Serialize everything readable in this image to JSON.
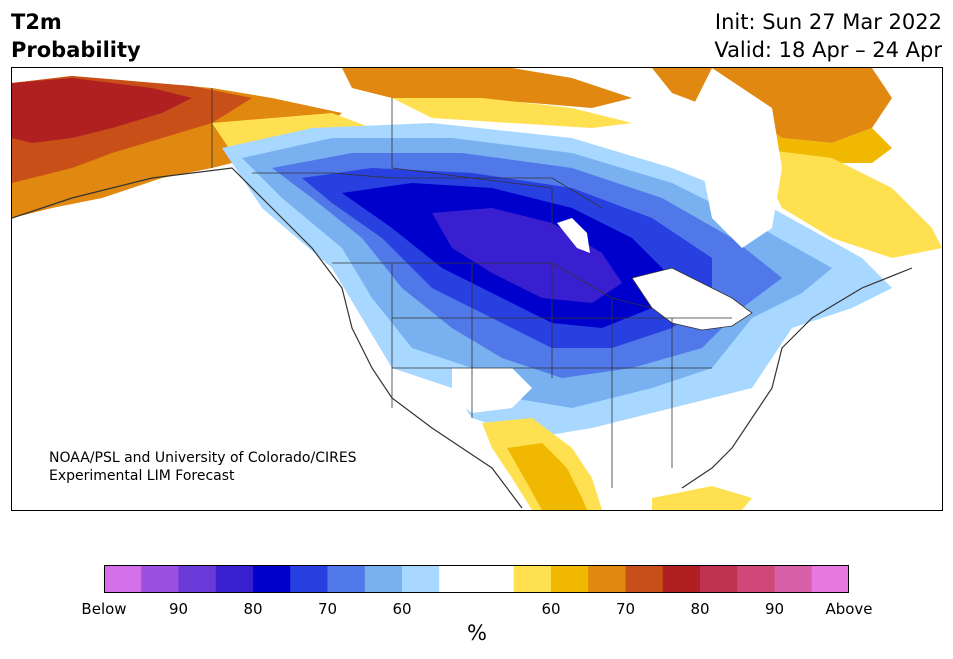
{
  "header": {
    "title_line1": "T2m",
    "title_line2": "Probability",
    "init": "Init: Sun 27 Mar 2022",
    "valid": "Valid: 18 Apr – 24 Apr"
  },
  "credit": {
    "line1": "NOAA/PSL and University of Colorado/CIRES",
    "line2": "Experimental LIM Forecast"
  },
  "colorbar": {
    "unit": "%",
    "colors": [
      "#d36fe8",
      "#9c4fe0",
      "#6a3ad8",
      "#3a1fd0",
      "#0000cc",
      "#2840e0",
      "#5078e8",
      "#78b0f0",
      "#a8d8ff",
      "#ffffff",
      "#ffffff",
      "#ffe050",
      "#f0b800",
      "#e08810",
      "#c85018",
      "#b02020",
      "#c03050",
      "#d04878",
      "#d860a8",
      "#e878e0"
    ],
    "ticks": [
      "Below",
      "90",
      "80",
      "70",
      "60",
      "60",
      "70",
      "80",
      "90",
      "Above"
    ]
  },
  "map": {
    "colors": {
      "below_60": "#a8d8ff",
      "below_70": "#78b0f0",
      "below_80": "#5078e8",
      "below_90": "#2840e0",
      "below_high": "#0000cc",
      "below_top": "#3a1fd0",
      "above_60": "#ffe050",
      "above_70": "#f0b800",
      "above_80": "#e08810",
      "above_90": "#c85018",
      "above_high": "#b02020",
      "above_top": "#c03050",
      "border": "#333333"
    }
  }
}
